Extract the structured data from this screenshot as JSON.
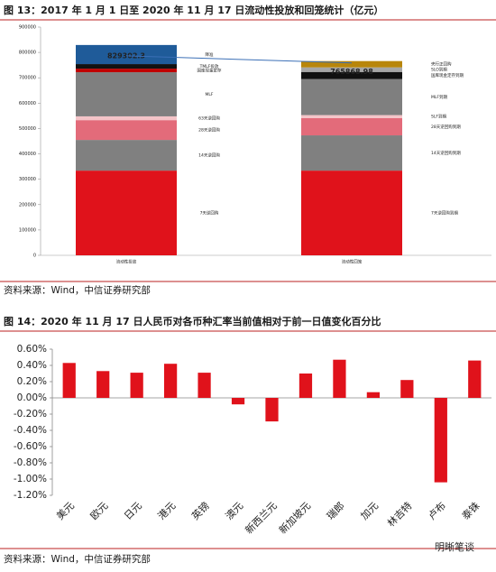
{
  "chart_data": [
    {
      "type": "stacked_bar",
      "title": "图 13：2017 年 1 月 1 日至 2020 年 11 月 17 日流动性投放和回笼统计（亿元）",
      "source": "资料来源：Wind，中信证券研究部",
      "ylim": [
        0,
        900000
      ],
      "yticks": [
        0,
        100000,
        200000,
        300000,
        400000,
        500000,
        600000,
        700000,
        800000,
        900000
      ],
      "link_color": "#3b6fb6",
      "stacks": [
        {
          "category": "流动性投放",
          "total": 829302.3,
          "segments": [
            {
              "name": "7天逆回购",
              "color": "#e0121b",
              "value": 334000
            },
            {
              "name": "14天逆回购",
              "color": "#808080",
              "value": 121000
            },
            {
              "name": "28天逆回购",
              "color": "#e36b7a",
              "value": 78000
            },
            {
              "name": "63天逆回购",
              "color": "#f4c4c8",
              "value": 15000
            },
            {
              "name": "MLF",
              "color": "#7f7f7f",
              "value": 174000
            },
            {
              "name": "国库现金定存",
              "color": "#c00000",
              "value": 14000
            },
            {
              "name": "TMLF投放",
              "color": "#111111",
              "value": 18000
            },
            {
              "name": "降准",
              "color": "#1f5b99",
              "value": 75302.3
            }
          ]
        },
        {
          "category": "流动性回笼",
          "total": 765868.98,
          "segments": [
            {
              "name": "7天逆回购到期",
              "color": "#e0121b",
              "value": 334000
            },
            {
              "name": "14天逆回购到期",
              "color": "#808080",
              "value": 139000
            },
            {
              "name": "28天逆回购到期",
              "color": "#e36b7a",
              "value": 68000
            },
            {
              "name": "SLF到期",
              "color": "#f4c4c8",
              "value": 12000
            },
            {
              "name": "MLF到期",
              "color": "#7f7f7f",
              "value": 142000
            },
            {
              "name": "国库现金定存到期",
              "color": "#111111",
              "value": 28000
            },
            {
              "name": "SLO到期",
              "color": "#a6a6a6",
              "value": 18000
            },
            {
              "name": "央行正回购",
              "color": "#b8860b",
              "value": 24868.98
            }
          ]
        }
      ]
    },
    {
      "type": "bar",
      "title": "图 14：2020 年 11 月 17 日人民币对各币种汇率当前值相对于前一日值变化百分比",
      "source": "资料来源：Wind，中信证券研究部",
      "watermark": "明晰笔谈",
      "color": "#e0121b",
      "grid": false,
      "categories": [
        "美元",
        "欧元",
        "日元",
        "港元",
        "英镑",
        "澳元",
        "新西兰元",
        "新加坡元",
        "瑞郎",
        "加元",
        "林吉特",
        "卢布",
        "泰铢"
      ],
      "values": [
        0.43,
        0.33,
        0.31,
        0.42,
        0.31,
        -0.08,
        -0.29,
        0.3,
        0.47,
        0.07,
        0.22,
        -1.04,
        0.46
      ],
      "ylim": [
        -1.2,
        0.6
      ],
      "yticks": [
        {
          "value": -1.2,
          "label": "-1.20%"
        },
        {
          "value": -1.0,
          "label": "-1.00%"
        },
        {
          "value": -0.8,
          "label": "-0.80%"
        },
        {
          "value": -0.6,
          "label": "-0.60%"
        },
        {
          "value": -0.4,
          "label": "-0.40%"
        },
        {
          "value": -0.2,
          "label": "-0.20%"
        },
        {
          "value": 0,
          "label": "0.00%"
        },
        {
          "value": 0.2,
          "label": "0.20%"
        },
        {
          "value": 0.4,
          "label": "0.40%"
        },
        {
          "value": 0.6,
          "label": "0.60%"
        }
      ]
    }
  ]
}
